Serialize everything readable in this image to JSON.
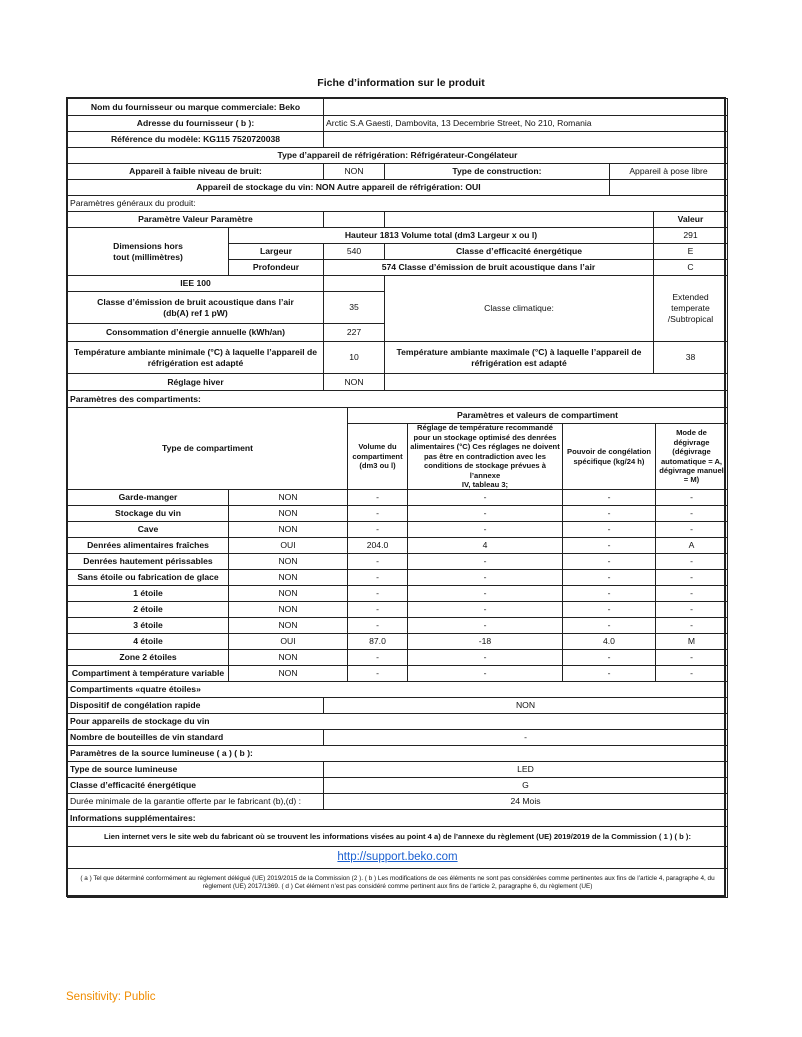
{
  "title": "Fiche d’information sur le produit",
  "supplier": {
    "name": "Nom du fournisseur ou marque commerciale: Beko",
    "address_label": "Adresse du fournisseur ( b ):",
    "address": "Arctic S.A Gaesti, Dambovita, 13 Decembrie Street, No 210, Romania",
    "model": "Référence du modèle: KG115 7520720038",
    "type": "Type d’appareil de réfrigération: Réfrigérateur-Congélateur"
  },
  "noise": {
    "label": "Appareil à faible niveau de bruit:",
    "value": "NON",
    "construction_label": "Type de construction:",
    "construction_value": "Appareil à pose libre"
  },
  "wine": {
    "text": "Appareil de stockage du vin: NON Autre appareil de réfrigération: OUI"
  },
  "general": {
    "heading": "Paramètres généraux du produit:",
    "param_header": "Paramètre  Valeur Paramètre",
    "value_header": "Valeur",
    "dimensions_label": "Dimensions hors\ntout (millimètres)",
    "height_row": "Hauteur 1813 Volume total (dm3 Largeur x ou l)",
    "total_volume": "291",
    "width_label": "Largeur",
    "width": "540",
    "energy_class_label": "Classe d’efficacité énergétique",
    "energy_class": "E",
    "depth_label": "Profondeur",
    "depth_row": "574 Classe d’émission de bruit acoustique dans l’air",
    "noise_class": "C",
    "iee": "IEE 100",
    "climate_label": "Classe climatique:",
    "climate_value": "Extended\ntemperate\n/Subtropical",
    "noise_emission_label": "Classe d’émission de bruit acoustique dans l’air\n(db(A) ref 1 pW)",
    "noise_emission": "35",
    "consumption_label": "Consommation d’énergie annuelle (kWh/an)",
    "consumption": "227",
    "min_temp_label": "Température ambiante minimale (°C) à laquelle l’appareil de\nréfrigération est adapté",
    "min_temp": "10",
    "max_temp_label": "Température ambiante maximale (°C) à laquelle l’appareil de\nréfrigération est adapté",
    "max_temp": "38",
    "winter_label": "Réglage hiver",
    "winter": "NON"
  },
  "compartments": {
    "heading": "Paramètres des compartiments:",
    "type_header": "Type de compartiment",
    "group_header": "Paramètres et valeurs de compartiment",
    "col_volume": "Volume du\ncompartiment\n(dm3 ou l)",
    "col_temp": "Réglage de température recommandé\npour un stockage optimisé des denrées\nalimentaires (°C) Ces réglages ne doivent\npas être en contradiction avec les\nconditions de stockage prévues à l’annexe\nIV, tableau 3;",
    "col_freeze": "Pouvoir de congélation\nspécifique (kg/24 h)",
    "col_defrost": "Mode de dégivrage\n(dégivrage\nautomatique = A,\ndégivrage manuel\n= M)",
    "rows": [
      [
        "Garde-manger",
        "NON",
        "-",
        "-",
        "-",
        "-"
      ],
      [
        "Stockage du vin",
        "NON",
        "-",
        "-",
        "-",
        "-"
      ],
      [
        "Cave",
        "NON",
        "-",
        "-",
        "-",
        "-"
      ],
      [
        "Denrées alimentaires fraîches",
        "OUI",
        "204.0",
        "4",
        "-",
        "A"
      ],
      [
        "Denrées hautement périssables",
        "NON",
        "-",
        "-",
        "-",
        "-"
      ],
      [
        "Sans étoile ou fabrication de glace",
        "NON",
        "-",
        "-",
        "-",
        "-"
      ],
      [
        "1 étoile",
        "NON",
        "-",
        "-",
        "-",
        "-"
      ],
      [
        "2 étoile",
        "NON",
        "-",
        "-",
        "-",
        "-"
      ],
      [
        "3 étoile",
        "NON",
        "-",
        "-",
        "-",
        "-"
      ],
      [
        "4 étoile",
        "OUI",
        "87.0",
        "-18",
        "4.0",
        "M"
      ],
      [
        "Zone 2 étoiles",
        "NON",
        "-",
        "-",
        "-",
        "-"
      ],
      [
        "Compartiment à température variable",
        "NON",
        "-",
        "-",
        "-",
        "-"
      ]
    ]
  },
  "four_star": {
    "heading": "Compartiments «quatre étoiles»",
    "fast_freeze_label": "Dispositif de congélation rapide",
    "fast_freeze": "NON"
  },
  "wine_storage": {
    "heading": "Pour appareils de stockage du vin",
    "bottles_label": "Nombre de bouteilles de vin standard",
    "bottles": "-"
  },
  "light": {
    "heading": "Paramètres de la source lumineuse ( a ) ( b ):",
    "type_label": "Type de source lumineuse",
    "type": "LED",
    "class_label": "Classe d’efficacité énergétique",
    "class": "G"
  },
  "warranty": {
    "label": "Durée minimale de la garantie offerte par le fabricant  (b),(d) :",
    "value": "24 Mois"
  },
  "extra": {
    "heading": "Informations supplémentaires:",
    "link_label": "Lien internet vers le site web du fabricant où se trouvent les informations visées au point 4 a) de l’annexe du règlement (UE) 2019/2019 de la Commission ( 1 ) ( b ):",
    "link": "http://support.beko.com",
    "footnote": "( a ) Tel que déterminé conformément au règlement délégué (UE) 2019/2015 de la Commission (2 ).  ( b ) Les modifications de ces éléments ne sont pas considérées comme pertinentes aux fins de l’article 4, paragraphe 4, du règlement (UE) 2017/1369. ( d ) Cet élément n’est pas considéré comme pertinent aux fins de l’article 2, paragraphe 6, du règlement (UE)"
  },
  "sensitivity": "Sensitivity: Public",
  "colors": {
    "link": "#1a5fd0",
    "sensitivity": "#f08c00"
  }
}
